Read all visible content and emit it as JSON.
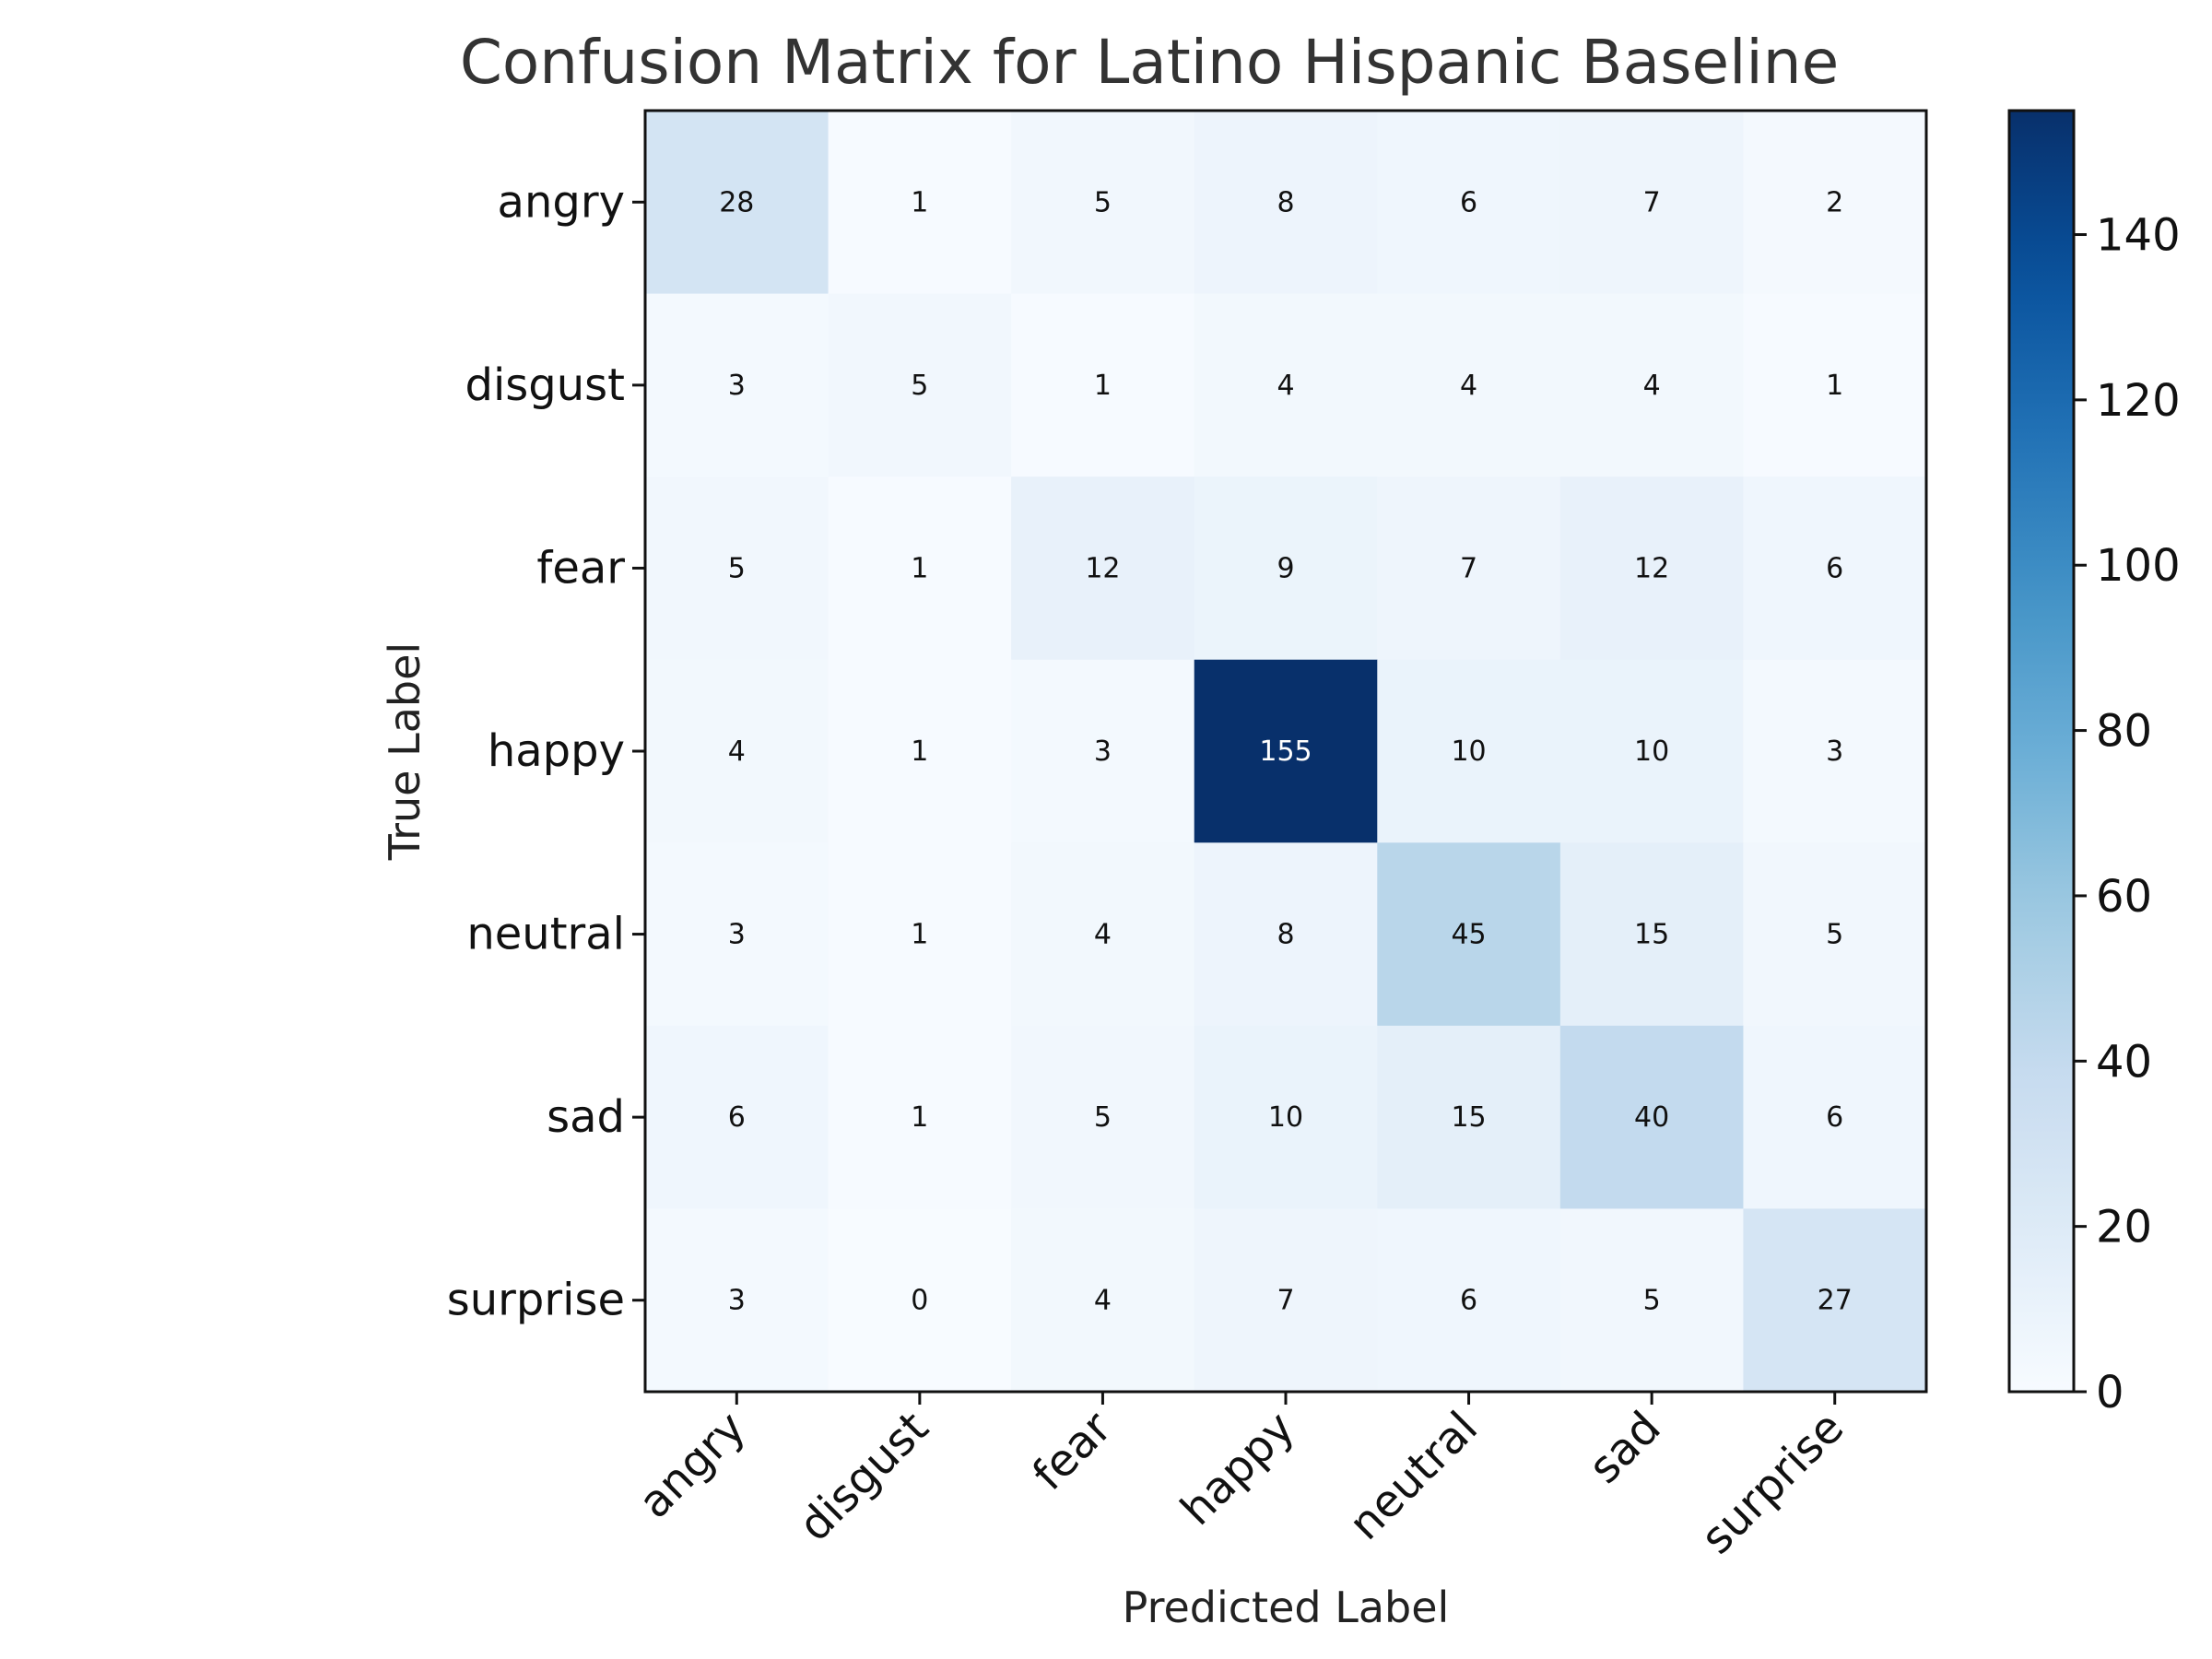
{
  "chart_data": {
    "type": "heatmap",
    "title": "Confusion Matrix for Latino Hispanic Baseline",
    "xlabel": "Predicted Label",
    "ylabel": "True Label",
    "x_categories": [
      "angry",
      "disgust",
      "fear",
      "happy",
      "neutral",
      "sad",
      "surprise"
    ],
    "y_categories": [
      "angry",
      "disgust",
      "fear",
      "happy",
      "neutral",
      "sad",
      "surprise"
    ],
    "values": [
      [
        28,
        1,
        5,
        8,
        6,
        7,
        2
      ],
      [
        3,
        5,
        1,
        4,
        4,
        4,
        1
      ],
      [
        5,
        1,
        12,
        9,
        7,
        12,
        6
      ],
      [
        4,
        1,
        3,
        155,
        10,
        10,
        3
      ],
      [
        3,
        1,
        4,
        8,
        45,
        15,
        5
      ],
      [
        6,
        1,
        5,
        10,
        15,
        40,
        6
      ],
      [
        3,
        0,
        4,
        7,
        6,
        5,
        27
      ]
    ],
    "colormap": "Blues",
    "colorbar": {
      "range": [
        0,
        155
      ],
      "ticks": [
        0,
        20,
        40,
        60,
        80,
        100,
        120,
        140
      ]
    },
    "grid": false
  }
}
